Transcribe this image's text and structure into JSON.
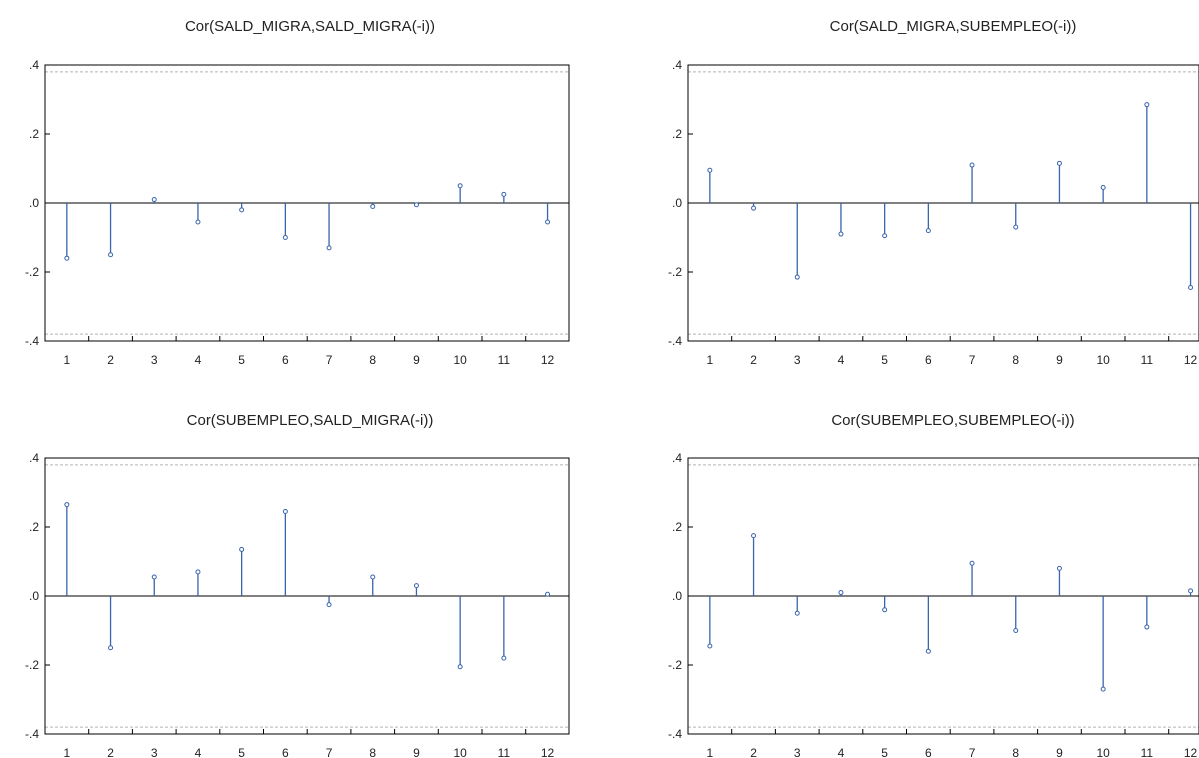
{
  "chart_data": [
    {
      "type": "bar",
      "title": "Cor(SALD_MIGRA,SALD_MIGRA(-i))",
      "categories": [
        "1",
        "2",
        "3",
        "4",
        "5",
        "6",
        "7",
        "8",
        "9",
        "10",
        "11",
        "12"
      ],
      "values": [
        -0.16,
        -0.15,
        0.01,
        -0.055,
        -0.02,
        -0.1,
        -0.13,
        -0.01,
        -0.005,
        0.05,
        0.025,
        -0.055
      ],
      "yticks": [
        ".4",
        ".2",
        ".0",
        "-.2",
        "-.4"
      ],
      "ylim": [
        -0.4,
        0.4
      ],
      "confidence_band": 0.38,
      "xlabel": "",
      "ylabel": ""
    },
    {
      "type": "bar",
      "title": "Cor(SALD_MIGRA,SUBEMPLEO(-i))",
      "categories": [
        "1",
        "2",
        "3",
        "4",
        "5",
        "6",
        "7",
        "8",
        "9",
        "10",
        "11",
        "12"
      ],
      "values": [
        0.095,
        -0.015,
        -0.215,
        -0.09,
        -0.095,
        -0.08,
        0.11,
        -0.07,
        0.115,
        0.045,
        0.285,
        -0.245
      ],
      "yticks": [
        ".4",
        ".2",
        ".0",
        "-.2",
        "-.4"
      ],
      "ylim": [
        -0.4,
        0.4
      ],
      "confidence_band": 0.38,
      "xlabel": "",
      "ylabel": ""
    },
    {
      "type": "bar",
      "title": "Cor(SUBEMPLEO,SALD_MIGRA(-i))",
      "categories": [
        "1",
        "2",
        "3",
        "4",
        "5",
        "6",
        "7",
        "8",
        "9",
        "10",
        "11",
        "12"
      ],
      "values": [
        0.265,
        -0.15,
        0.055,
        0.07,
        0.135,
        0.245,
        -0.025,
        0.055,
        0.03,
        -0.205,
        -0.18,
        0.005
      ],
      "yticks": [
        ".4",
        ".2",
        ".0",
        "-.2",
        "-.4"
      ],
      "ylim": [
        -0.4,
        0.4
      ],
      "confidence_band": 0.38,
      "xlabel": "",
      "ylabel": ""
    },
    {
      "type": "bar",
      "title": "Cor(SUBEMPLEO,SUBEMPLEO(-i))",
      "categories": [
        "1",
        "2",
        "3",
        "4",
        "5",
        "6",
        "7",
        "8",
        "9",
        "10",
        "11",
        "12"
      ],
      "values": [
        -0.145,
        0.175,
        -0.05,
        0.01,
        -0.04,
        -0.16,
        0.095,
        -0.1,
        0.08,
        -0.27,
        -0.09,
        0.015
      ],
      "yticks": [
        ".4",
        ".2",
        ".0",
        "-.2",
        "-.4"
      ],
      "ylim": [
        -0.4,
        0.4
      ],
      "confidence_band": 0.38,
      "xlabel": "",
      "ylabel": ""
    }
  ],
  "colors": {
    "stem": "#3a64ac",
    "band": "#b4b4b4",
    "axis": "#000000",
    "zero": "#000000"
  }
}
